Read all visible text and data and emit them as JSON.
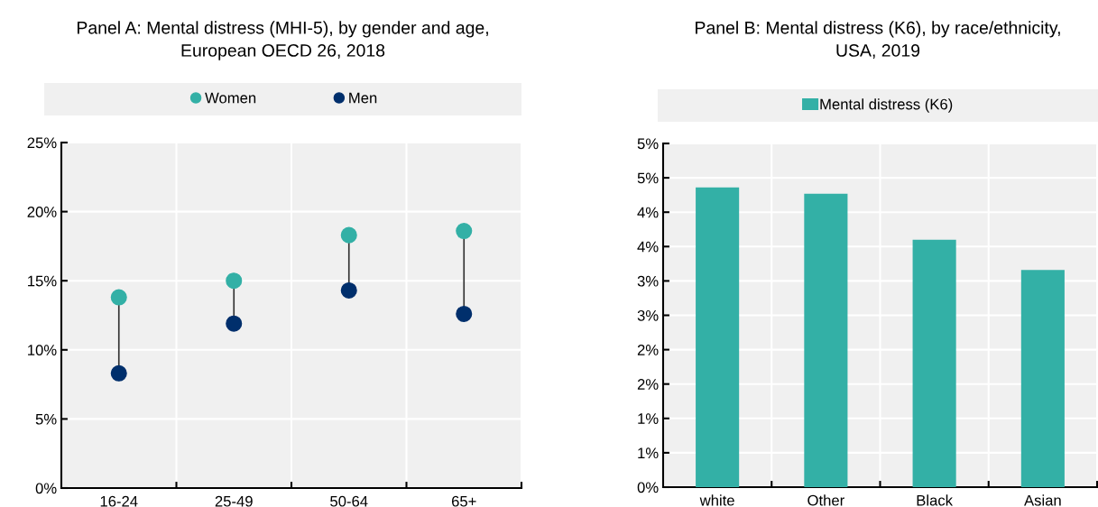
{
  "chart_data": [
    {
      "type": "scatter",
      "title": "Panel A: Mental distress (MHI-5), by gender and age,\nEuropean OECD 26, 2018",
      "categories": [
        "16-24",
        "25-49",
        "50-64",
        "65+"
      ],
      "series": [
        {
          "name": "Women",
          "color": "#33b0a6",
          "values": [
            13.8,
            15.0,
            18.3,
            18.6
          ]
        },
        {
          "name": "Men",
          "color": "#002f6c",
          "values": [
            8.3,
            11.9,
            14.3,
            12.6
          ]
        }
      ],
      "ylim": [
        0,
        25
      ],
      "yticks": [
        {
          "value": 0,
          "label": "0%"
        },
        {
          "value": 5,
          "label": "5%"
        },
        {
          "value": 10,
          "label": "10%"
        },
        {
          "value": 15,
          "label": "15%"
        },
        {
          "value": 20,
          "label": "20%"
        },
        {
          "value": 25,
          "label": "25%"
        }
      ],
      "grid": true,
      "legend": "top",
      "marker": "circle"
    },
    {
      "type": "bar",
      "title": "Panel B: Mental distress (K6), by race/ethnicity,\nUSA, 2019",
      "categories": [
        "white",
        "Other",
        "Black",
        "Asian"
      ],
      "series": [
        {
          "name": "Mental distress (K6)",
          "color": "#33b0a6",
          "values": [
            4.36,
            4.27,
            3.6,
            3.16
          ]
        }
      ],
      "ylim": [
        0,
        5
      ],
      "yticks": [
        {
          "value": 0,
          "label": "0%"
        },
        {
          "value": 0.5,
          "label": "1%"
        },
        {
          "value": 1,
          "label": "1%"
        },
        {
          "value": 1.5,
          "label": "2%"
        },
        {
          "value": 2,
          "label": "2%"
        },
        {
          "value": 2.5,
          "label": "3%"
        },
        {
          "value": 3,
          "label": "3%"
        },
        {
          "value": 3.5,
          "label": "4%"
        },
        {
          "value": 4,
          "label": "4%"
        },
        {
          "value": 4.5,
          "label": "5%"
        },
        {
          "value": 5,
          "label": "5%"
        }
      ],
      "grid": true,
      "legend": "top"
    }
  ]
}
